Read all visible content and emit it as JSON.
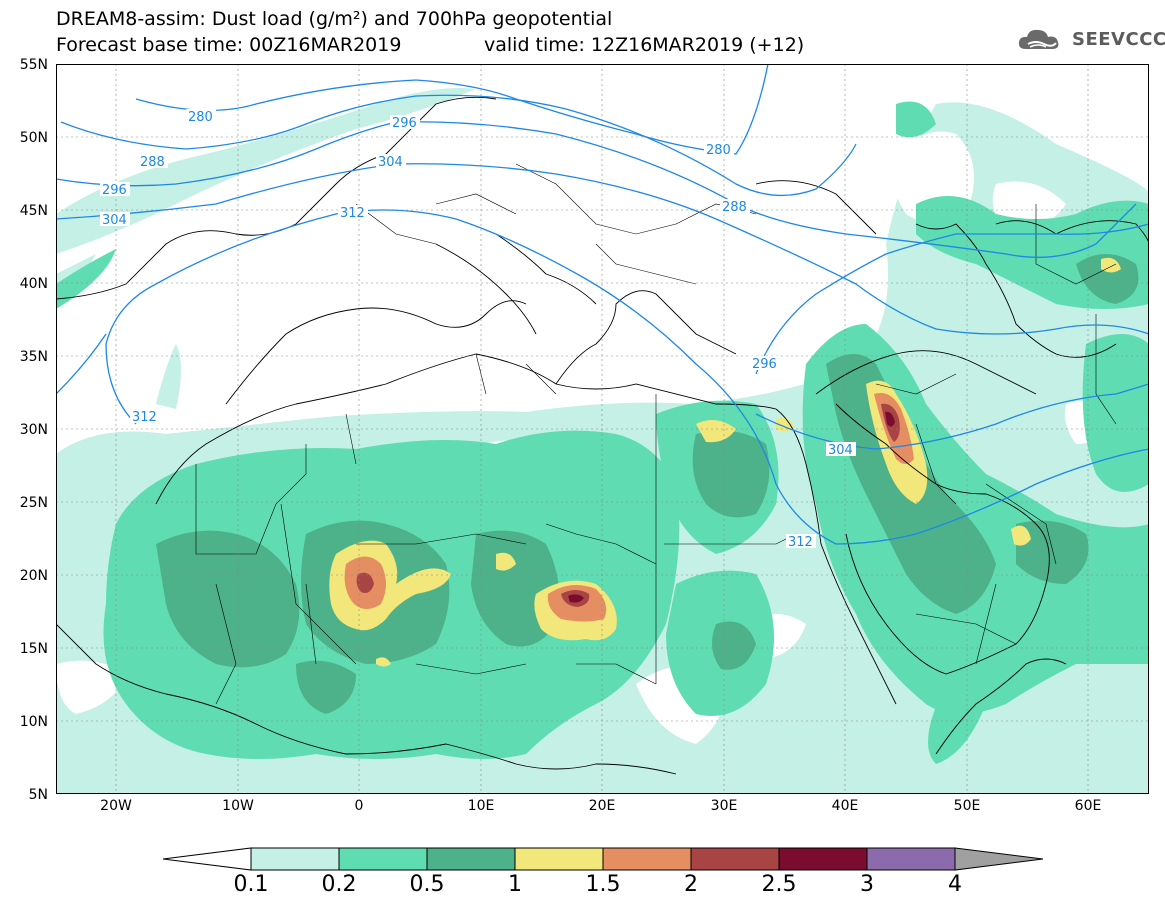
{
  "header": {
    "title_line1": "DREAM8-assim: Dust load (g/m²) and 700hPa geopotential",
    "title_line2_left": "Forecast base time: 00Z16MAR2019",
    "title_line2_right": "valid time: 12Z16MAR2019 (+12)",
    "logo_text": "SEEVCCC",
    "logo_icon": "cloud-logo-icon"
  },
  "map": {
    "lat_range": [
      5,
      55
    ],
    "lon_range": [
      -25,
      65
    ],
    "lat_labels": [
      "55N",
      "50N",
      "45N",
      "40N",
      "35N",
      "30N",
      "25N",
      "20N",
      "15N",
      "10N",
      "5N"
    ],
    "lon_labels": [
      "20W",
      "10W",
      "0",
      "10E",
      "20E",
      "30E",
      "40E",
      "50E",
      "60E"
    ],
    "contour_labels": [
      "280",
      "288",
      "296",
      "304",
      "312",
      "280",
      "288",
      "296",
      "304",
      "312",
      "296",
      "304",
      "312"
    ],
    "contour_color": "#1e88e5"
  },
  "legend": {
    "labels": [
      "0.1",
      "0.2",
      "0.5",
      "1",
      "1.5",
      "2",
      "2.5",
      "3",
      "4"
    ],
    "colors": [
      "#ffffff",
      "#c4f0e6",
      "#5fdcb2",
      "#4db28a",
      "#f2e77a",
      "#e58e62",
      "#a84444",
      "#7a0d2f",
      "#8c6bad",
      "#a0a0a0"
    ]
  }
}
